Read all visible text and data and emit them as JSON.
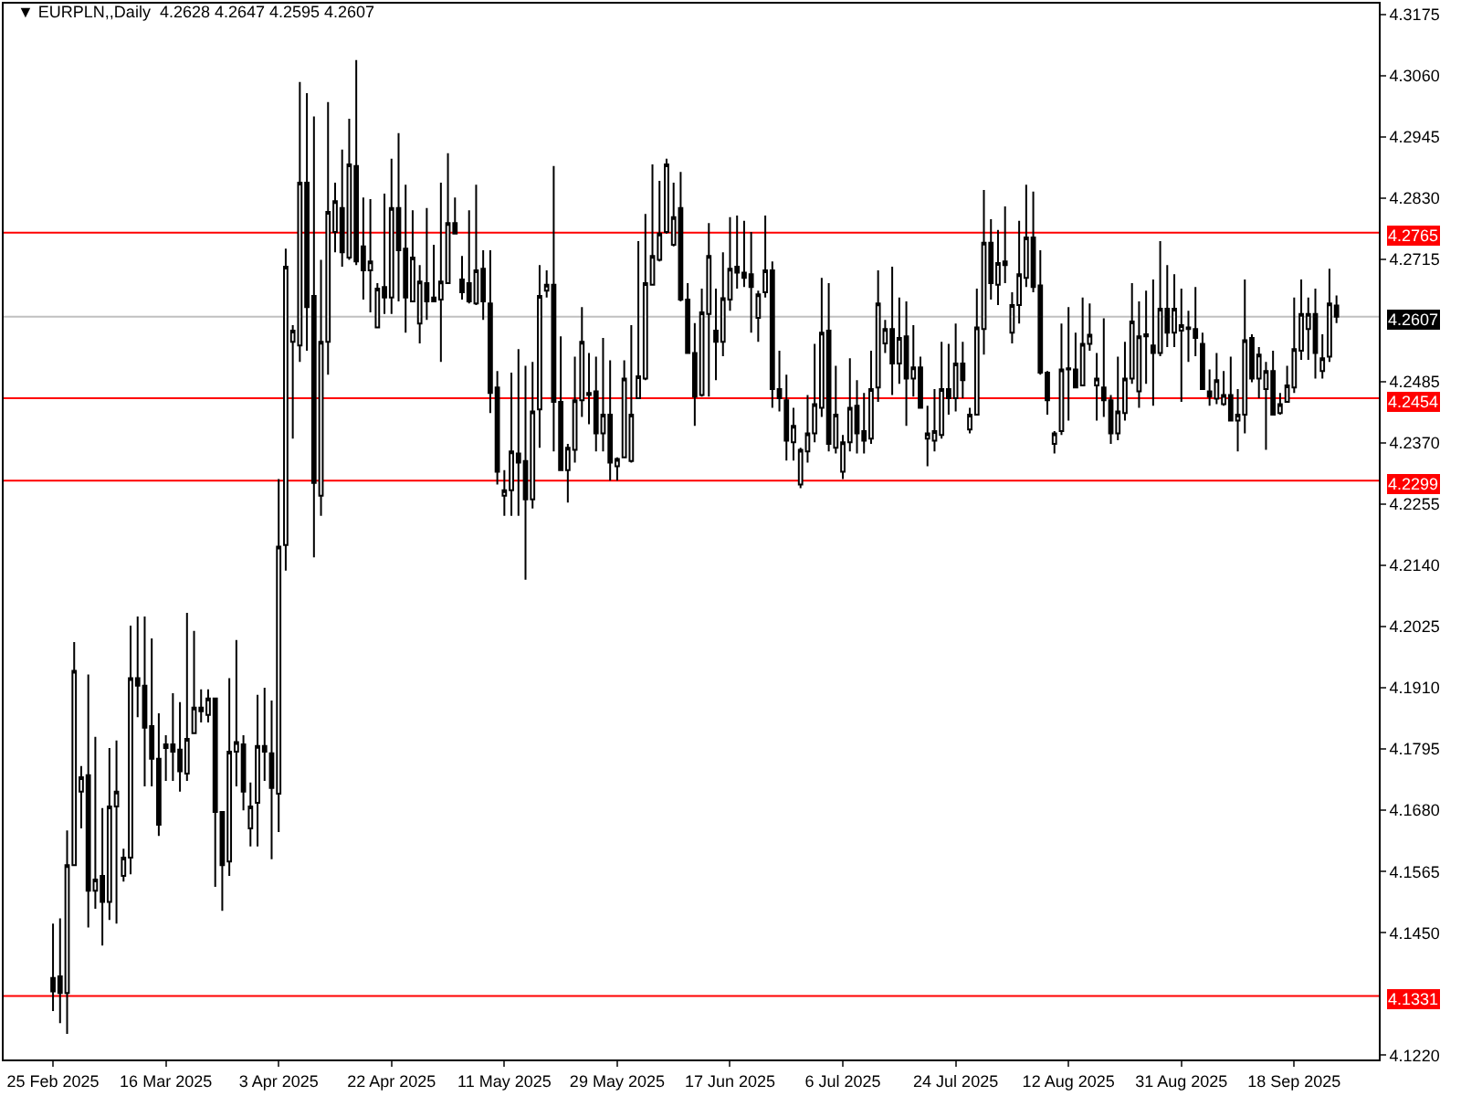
{
  "chart_data": {
    "type": "candlestick",
    "title": "▼ EURPLN,,Daily  4.2628 4.2647 4.2595 4.2607",
    "categories": [
      "25 Feb 2025",
      null,
      null,
      null,
      null,
      null,
      null,
      null,
      null,
      null,
      null,
      null,
      null,
      null,
      null,
      null,
      "16 Mar 2025",
      null,
      null,
      null,
      null,
      null,
      null,
      null,
      null,
      null,
      null,
      null,
      null,
      null,
      null,
      null,
      "3 Apr 2025",
      null,
      null,
      null,
      null,
      null,
      null,
      null,
      null,
      null,
      null,
      null,
      null,
      null,
      null,
      null,
      "22 Apr 2025",
      null,
      null,
      null,
      null,
      null,
      null,
      null,
      null,
      null,
      null,
      null,
      null,
      null,
      null,
      null,
      "11 May 2025",
      null,
      null,
      null,
      null,
      null,
      null,
      null,
      null,
      null,
      null,
      null,
      null,
      null,
      null,
      null,
      "29 May 2025",
      null,
      null,
      null,
      null,
      null,
      null,
      null,
      null,
      null,
      null,
      null,
      null,
      null,
      null,
      null,
      "17 Jun 2025",
      null,
      null,
      null,
      null,
      null,
      null,
      null,
      null,
      null,
      null,
      null,
      null,
      null,
      null,
      null,
      "6 Jul 2025",
      null,
      null,
      null,
      null,
      null,
      null,
      null,
      null,
      null,
      null,
      null,
      null,
      null,
      null,
      null,
      "24 Jul 2025",
      null,
      null,
      null,
      null,
      null,
      null,
      null,
      null,
      null,
      null,
      null,
      null,
      null,
      null,
      null,
      "12 Aug 2025",
      null,
      null,
      null,
      null,
      null,
      null,
      null,
      null,
      null,
      null,
      null,
      null,
      null,
      null,
      null,
      "31 Aug 2025",
      null,
      null,
      null,
      null,
      null,
      null,
      null,
      null,
      null,
      null,
      null,
      null,
      null,
      null,
      null,
      "18 Sep 2025",
      null,
      null,
      null,
      null,
      null,
      null
    ],
    "ohlc": [
      [
        4.1365,
        4.1467,
        4.1303,
        4.134
      ],
      [
        4.1368,
        4.1477,
        4.128,
        4.1337
      ],
      [
        4.1337,
        4.1642,
        4.126,
        4.1577
      ],
      [
        4.1577,
        4.1996,
        4.1577,
        4.1942
      ],
      [
        4.1715,
        4.1763,
        4.1646,
        4.1742
      ],
      [
        4.1746,
        4.1935,
        4.146,
        4.1529
      ],
      [
        4.1529,
        4.1818,
        4.1495,
        4.155
      ],
      [
        4.1557,
        4.1684,
        4.1426,
        4.1508
      ],
      [
        4.1508,
        4.1797,
        4.1474,
        4.1687
      ],
      [
        4.1687,
        4.1811,
        4.1467,
        4.1715
      ],
      [
        4.1557,
        4.1608,
        4.1546,
        4.1591
      ],
      [
        4.1591,
        4.2027,
        4.156,
        4.1928
      ],
      [
        4.1928,
        4.2044,
        4.1855,
        4.1914
      ],
      [
        4.1914,
        4.2044,
        4.1725,
        4.1835
      ],
      [
        4.1838,
        4.2003,
        4.1725,
        4.1777
      ],
      [
        4.1777,
        4.1862,
        4.1632,
        4.1653
      ],
      [
        4.1797,
        4.1821,
        4.1735,
        4.1804
      ],
      [
        4.1804,
        4.19,
        4.1735,
        4.179
      ],
      [
        4.1794,
        4.1883,
        4.1715,
        4.1753
      ],
      [
        4.1749,
        4.2051,
        4.1735,
        4.1814
      ],
      [
        4.1825,
        4.2017,
        4.1825,
        4.1873
      ],
      [
        4.1873,
        4.1907,
        4.1845,
        4.1866
      ],
      [
        4.1859,
        4.1907,
        4.1845,
        4.189
      ],
      [
        4.189,
        4.189,
        4.1536,
        4.1677
      ],
      [
        4.1677,
        4.1677,
        4.1491,
        4.1577
      ],
      [
        4.1584,
        4.1928,
        4.1557,
        4.179
      ],
      [
        4.179,
        4.2,
        4.1725,
        4.1808
      ],
      [
        4.1804,
        4.1821,
        4.168,
        4.1715
      ],
      [
        4.1646,
        4.1732,
        4.1612,
        4.1687
      ],
      [
        4.1694,
        4.1897,
        4.1612,
        4.1801
      ],
      [
        4.1801,
        4.191,
        4.1735,
        4.179
      ],
      [
        4.1787,
        4.1886,
        4.1588,
        4.1722
      ],
      [
        4.1711,
        4.2302,
        4.1639,
        4.2175
      ],
      [
        4.2178,
        4.2735,
        4.213,
        4.2701
      ],
      [
        4.256,
        4.2591,
        4.2378,
        4.2581
      ],
      [
        4.2553,
        4.3048,
        4.2522,
        4.2859
      ],
      [
        4.2859,
        4.3027,
        4.2543,
        4.2625
      ],
      [
        4.2646,
        4.2983,
        4.2155,
        4.2295
      ],
      [
        4.2271,
        4.2714,
        4.2233,
        4.256
      ],
      [
        4.256,
        4.301,
        4.2498,
        4.2804
      ],
      [
        4.2766,
        4.2859,
        4.2728,
        4.2824
      ],
      [
        4.2811,
        4.2921,
        4.2701,
        4.2728
      ],
      [
        4.2718,
        4.2979,
        4.2714,
        4.2893
      ],
      [
        4.289,
        4.3089,
        4.2704,
        4.2711
      ],
      [
        4.2739,
        4.2831,
        4.2639,
        4.2694
      ],
      [
        4.2694,
        4.2828,
        4.2615,
        4.2711
      ],
      [
        4.2587,
        4.267,
        4.2587,
        4.266
      ],
      [
        4.2663,
        4.2838,
        4.2612,
        4.2643
      ],
      [
        4.2643,
        4.2904,
        4.2612,
        4.2811
      ],
      [
        4.2811,
        4.2952,
        4.2636,
        4.2732
      ],
      [
        4.2735,
        4.2855,
        4.2577,
        4.2643
      ],
      [
        4.2636,
        4.2807,
        4.2636,
        4.2718
      ],
      [
        4.2594,
        4.2704,
        4.2557,
        4.2673
      ],
      [
        4.267,
        4.2811,
        4.2601,
        4.2636
      ],
      [
        4.2643,
        4.2742,
        4.2636,
        4.2636
      ],
      [
        4.2639,
        4.2859,
        4.2522,
        4.2673
      ],
      [
        4.267,
        4.2914,
        4.267,
        4.2783
      ],
      [
        4.2783,
        4.2831,
        4.2763,
        4.2763
      ],
      [
        4.2677,
        4.2721,
        4.2639,
        4.2653
      ],
      [
        4.267,
        4.2807,
        4.2632,
        4.2636
      ],
      [
        4.2632,
        4.2855,
        4.2629,
        4.2694
      ],
      [
        4.2697,
        4.2732,
        4.2601,
        4.2636
      ],
      [
        4.2632,
        4.2732,
        4.2426,
        4.2464
      ],
      [
        4.2474,
        4.2505,
        4.2292,
        4.2316
      ],
      [
        4.2271,
        4.2319,
        4.2233,
        4.2281
      ],
      [
        4.2281,
        4.2502,
        4.2233,
        4.2354
      ],
      [
        4.235,
        4.2546,
        4.2233,
        4.2333
      ],
      [
        4.2336,
        4.2515,
        4.2113,
        4.2264
      ],
      [
        4.2264,
        4.2522,
        4.2247,
        4.2429
      ],
      [
        4.2433,
        4.2704,
        4.2361,
        4.2646
      ],
      [
        4.2656,
        4.2694,
        4.2643,
        4.2667
      ],
      [
        4.2667,
        4.289,
        4.2354,
        4.2447
      ],
      [
        4.2447,
        4.257,
        4.2319,
        4.2319
      ],
      [
        4.2319,
        4.2368,
        4.2258,
        4.2361
      ],
      [
        4.2357,
        4.2532,
        4.2333,
        4.245
      ],
      [
        4.245,
        4.2625,
        4.2419,
        4.256
      ],
      [
        4.246,
        4.2539,
        4.2405,
        4.2464
      ],
      [
        4.2467,
        4.2532,
        4.2354,
        4.2388
      ],
      [
        4.2388,
        4.2567,
        4.2354,
        4.2423
      ],
      [
        4.2423,
        4.2525,
        4.2299,
        4.2333
      ],
      [
        4.2326,
        4.2343,
        4.2299,
        4.234
      ],
      [
        4.2343,
        4.2525,
        4.2343,
        4.2491
      ],
      [
        4.2336,
        4.2591,
        4.2333,
        4.2423
      ],
      [
        4.2454,
        4.2749,
        4.2454,
        4.2495
      ],
      [
        4.2491,
        4.28,
        4.2488,
        4.267
      ],
      [
        4.2667,
        4.2893,
        4.2667,
        4.2721
      ],
      [
        4.2714,
        4.2862,
        4.2711,
        4.2763
      ],
      [
        4.2766,
        4.2904,
        4.2763,
        4.2893
      ],
      [
        4.2742,
        4.2859,
        4.2739,
        4.2794
      ],
      [
        4.2811,
        4.2879,
        4.2636,
        4.2639
      ],
      [
        4.2639,
        4.267,
        4.2539,
        4.2539
      ],
      [
        4.2539,
        4.2595,
        4.2402,
        4.2457
      ],
      [
        4.246,
        4.266,
        4.2457,
        4.2615
      ],
      [
        4.2612,
        4.2783,
        4.2457,
        4.2721
      ],
      [
        4.2581,
        4.266,
        4.2488,
        4.256
      ],
      [
        4.256,
        4.2728,
        4.2533,
        4.2642
      ],
      [
        4.2639,
        4.2794,
        4.2618,
        4.2697
      ],
      [
        4.2701,
        4.2797,
        4.266,
        4.269
      ],
      [
        4.269,
        4.2787,
        4.2663,
        4.268
      ],
      [
        4.2687,
        4.2766,
        4.2577,
        4.2663
      ],
      [
        4.2605,
        4.2656,
        4.256,
        4.2649
      ],
      [
        4.2653,
        4.2797,
        4.2643,
        4.2694
      ],
      [
        4.2694,
        4.2711,
        4.2436,
        4.2471
      ],
      [
        4.2471,
        4.2543,
        4.2429,
        4.2454
      ],
      [
        4.245,
        4.2498,
        4.2337,
        4.2374
      ],
      [
        4.2371,
        4.2436,
        4.2337,
        4.2402
      ],
      [
        4.2292,
        4.2361,
        4.2285,
        4.2357
      ],
      [
        4.2354,
        4.246,
        4.2333,
        4.2388
      ],
      [
        4.2388,
        4.2556,
        4.2371,
        4.2443
      ],
      [
        4.2436,
        4.268,
        4.2419,
        4.2577
      ],
      [
        4.2581,
        4.267,
        4.2354,
        4.2368
      ],
      [
        4.2361,
        4.2515,
        4.235,
        4.2423
      ],
      [
        4.2316,
        4.2385,
        4.2302,
        4.2371
      ],
      [
        4.2371,
        4.2529,
        4.2354,
        4.2436
      ],
      [
        4.244,
        4.2488,
        4.235,
        4.2388
      ],
      [
        4.2392,
        4.2464,
        4.235,
        4.2374
      ],
      [
        4.2378,
        4.2543,
        4.2368,
        4.2471
      ],
      [
        4.2474,
        4.2694,
        4.2447,
        4.2632
      ],
      [
        4.2557,
        4.2601,
        4.2539,
        4.2584
      ],
      [
        4.2584,
        4.2701,
        4.246,
        4.2519
      ],
      [
        4.2519,
        4.2643,
        4.2481,
        4.2567
      ],
      [
        4.257,
        4.2636,
        4.2402,
        4.2491
      ],
      [
        4.2491,
        4.2591,
        4.2457,
        4.2512
      ],
      [
        4.2512,
        4.2532,
        4.2436,
        4.2436
      ],
      [
        4.2378,
        4.244,
        4.2326,
        4.2388
      ],
      [
        4.2374,
        4.2471,
        4.2354,
        4.2392
      ],
      [
        4.2385,
        4.256,
        4.2378,
        4.2471
      ],
      [
        4.2471,
        4.2556,
        4.2423,
        4.2454
      ],
      [
        4.2454,
        4.2594,
        4.2429,
        4.2519
      ],
      [
        4.2519,
        4.256,
        4.2454,
        4.2488
      ],
      [
        4.2395,
        4.2436,
        4.2388,
        4.2423
      ],
      [
        4.2423,
        4.266,
        4.2423,
        4.2587
      ],
      [
        4.2584,
        4.2845,
        4.2536,
        4.2746
      ],
      [
        4.2746,
        4.279,
        4.2639,
        4.267
      ],
      [
        4.2667,
        4.277,
        4.2629,
        4.2708
      ],
      [
        4.2711,
        4.2814,
        4.267,
        4.2704
      ],
      [
        4.2577,
        4.2653,
        4.2557,
        4.2629
      ],
      [
        4.2629,
        4.2787,
        4.2594,
        4.2687
      ],
      [
        4.268,
        4.2855,
        4.2663,
        4.2756
      ],
      [
        4.2756,
        4.2842,
        4.2653,
        4.2663
      ],
      [
        4.2666,
        4.2732,
        4.2498,
        4.2502
      ],
      [
        4.2502,
        4.2505,
        4.2423,
        4.245
      ],
      [
        4.2368,
        4.2392,
        4.235,
        4.2388
      ],
      [
        4.2392,
        4.2594,
        4.2385,
        4.2508
      ],
      [
        4.2508,
        4.2625,
        4.2412,
        4.251
      ],
      [
        4.2508,
        4.2577,
        4.2474,
        4.2474
      ],
      [
        4.2478,
        4.2643,
        4.2478,
        4.2556
      ],
      [
        4.2556,
        4.2632,
        4.2543,
        4.2573
      ],
      [
        4.2478,
        4.2539,
        4.2412,
        4.2491
      ],
      [
        4.2474,
        4.2604,
        4.2419,
        4.245
      ],
      [
        4.245,
        4.246,
        4.2368,
        4.2388
      ],
      [
        4.2388,
        4.2532,
        4.2375,
        4.2429
      ],
      [
        4.2426,
        4.256,
        4.2412,
        4.2491
      ],
      [
        4.2491,
        4.267,
        4.2481,
        4.2598
      ],
      [
        4.2467,
        4.2636,
        4.2436,
        4.257
      ],
      [
        4.257,
        4.2656,
        4.2481,
        4.2574
      ],
      [
        4.2553,
        4.2677,
        4.244,
        4.2539
      ],
      [
        4.2539,
        4.2749,
        4.2533,
        4.2622
      ],
      [
        4.2622,
        4.2704,
        4.255,
        4.2577
      ],
      [
        4.2577,
        4.2687,
        4.255,
        4.2622
      ],
      [
        4.2581,
        4.266,
        4.2447,
        4.2591
      ],
      [
        4.2584,
        4.2618,
        4.2522,
        4.2587
      ],
      [
        4.2584,
        4.2663,
        4.2533,
        4.2567
      ],
      [
        4.2556,
        4.2577,
        4.2471,
        4.2471
      ],
      [
        4.2467,
        4.2508,
        4.244,
        4.2457
      ],
      [
        4.2453,
        4.2539,
        4.2443,
        4.2488
      ],
      [
        4.2443,
        4.2505,
        4.244,
        4.246
      ],
      [
        4.246,
        4.2532,
        4.2412,
        4.2412
      ],
      [
        4.2412,
        4.2471,
        4.2354,
        4.2423
      ],
      [
        4.2423,
        4.2677,
        4.2388,
        4.2563
      ],
      [
        4.2567,
        4.2574,
        4.2484,
        4.2491
      ],
      [
        4.2491,
        4.255,
        4.2454,
        4.2536
      ],
      [
        4.2471,
        4.2522,
        4.2357,
        4.2505
      ],
      [
        4.2505,
        4.2543,
        4.2423,
        4.2423
      ],
      [
        4.2426,
        4.2464,
        4.2423,
        4.2443
      ],
      [
        4.2447,
        4.2515,
        4.2447,
        4.2478
      ],
      [
        4.2474,
        4.2643,
        4.2464,
        4.2546
      ],
      [
        4.2543,
        4.2677,
        4.2526,
        4.2612
      ],
      [
        4.2584,
        4.2643,
        4.2526,
        4.2612
      ],
      [
        4.2612,
        4.266,
        4.2491,
        4.2539
      ],
      [
        4.2505,
        4.2574,
        4.2491,
        4.2529
      ],
      [
        4.2532,
        4.2697,
        4.2522,
        4.2632
      ],
      [
        4.2628,
        4.2647,
        4.2595,
        4.2607
      ]
    ],
    "ylim": [
      4.1212,
      4.3195
    ],
    "yticks": [
      {
        "value": 4.122,
        "label": "4.1220"
      },
      {
        "value": 4.145,
        "label": "4.1450"
      },
      4.1565,
      {
        "value": 4.168,
        "label": "4.1680"
      },
      4.1795,
      {
        "value": 4.191,
        "label": "4.1910"
      },
      4.2025,
      {
        "value": 4.214,
        "label": "4.2140"
      },
      4.2255,
      {
        "value": 4.237,
        "label": "4.2370"
      },
      4.2485,
      4.2715,
      {
        "value": 4.283,
        "label": "4.2830"
      },
      4.2945,
      {
        "value": 4.306,
        "label": "4.3060"
      },
      4.3175
    ],
    "ref_lines": [
      {
        "axis": "y",
        "value": 4.2765,
        "label": "4.2765",
        "color": "#ff0000"
      },
      {
        "axis": "y",
        "value": 4.2607,
        "label": "4.2607",
        "color": "#c0c0c0"
      },
      {
        "axis": "y",
        "value": 4.2454,
        "label": "4.2454",
        "color": "#ff0000"
      },
      {
        "axis": "y",
        "value": 4.2299,
        "label": "4.2299",
        "color": "#ff0000"
      },
      {
        "axis": "y",
        "value": 4.1331,
        "label": "4.1331",
        "color": "#ff0000"
      }
    ],
    "grid": false
  }
}
